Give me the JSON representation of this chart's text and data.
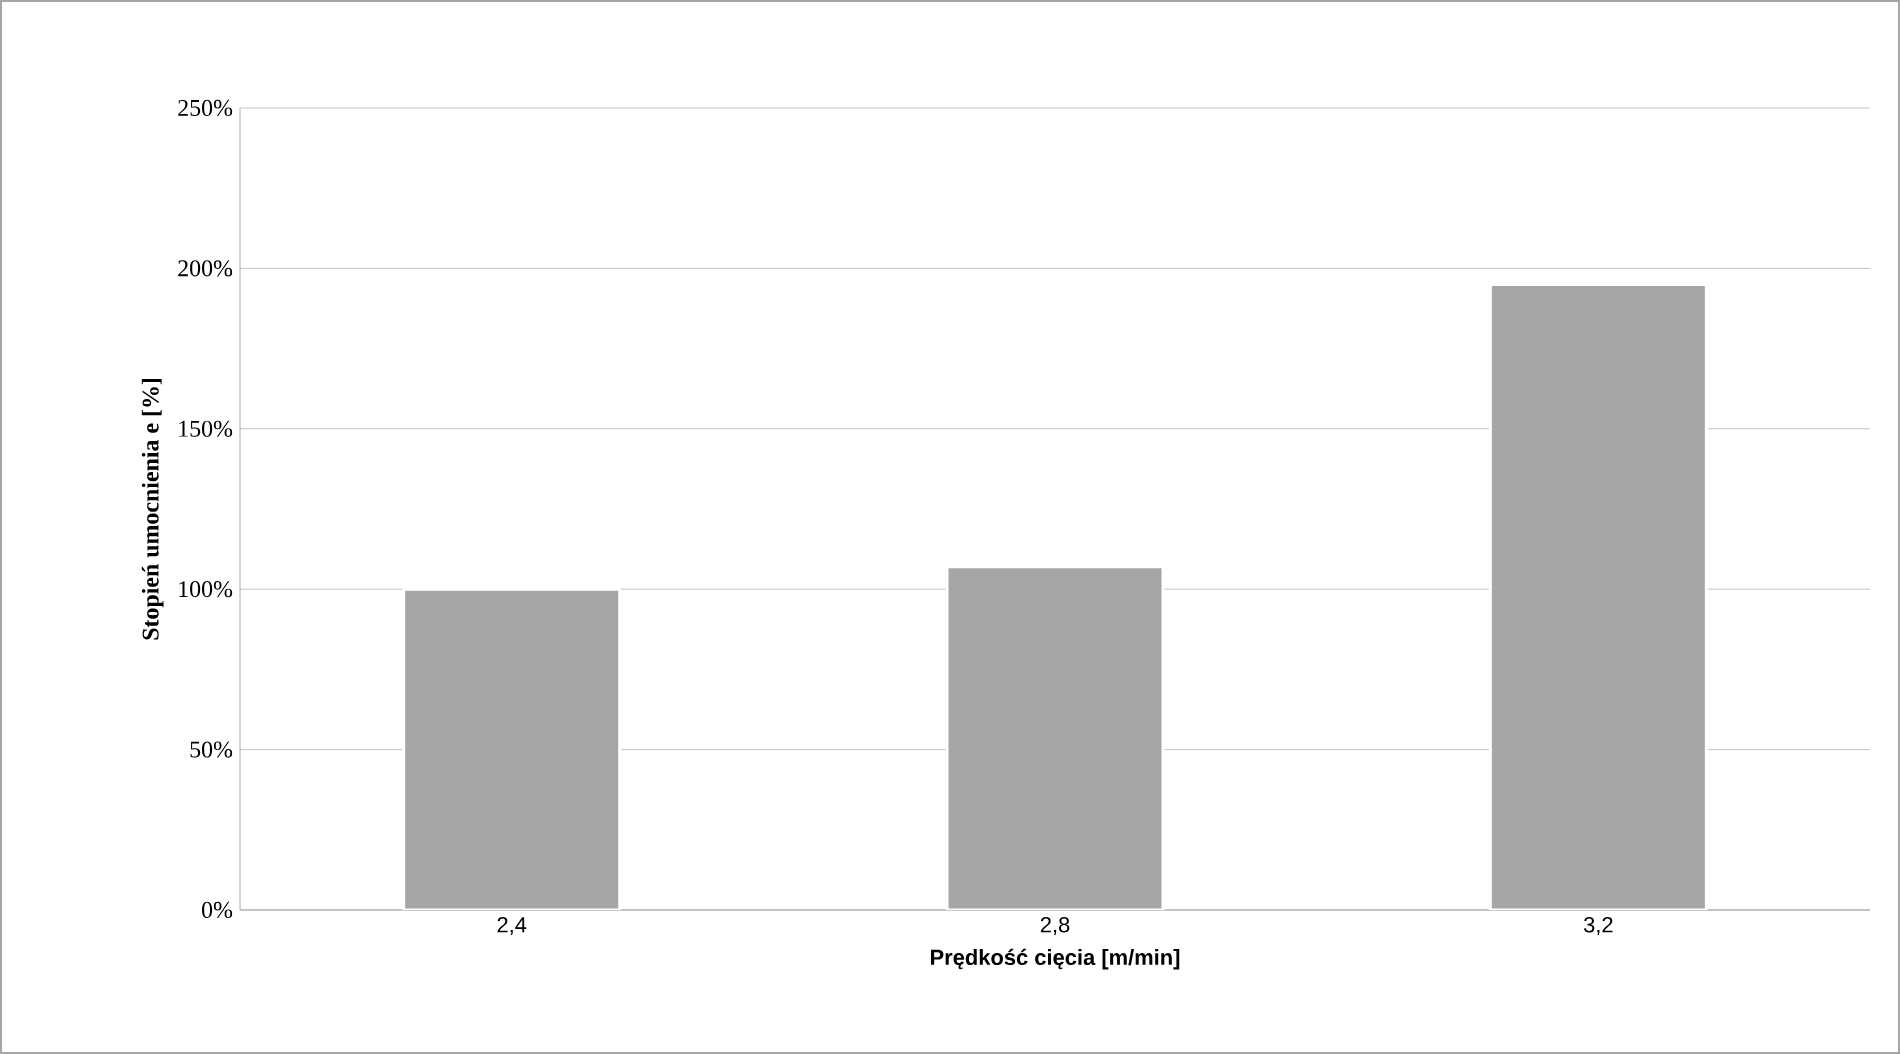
{
  "chart_data": {
    "type": "bar",
    "xlabel": "Prędkość cięcia [m/min]",
    "ylabel": "Stopień umocnienia e [%]",
    "categories": [
      "2,4",
      "2,8",
      "3,2"
    ],
    "values": [
      100,
      107,
      195
    ],
    "color": "#a6a6a6",
    "ylim": [
      0,
      250
    ],
    "yticks": [
      {
        "value": 0,
        "label": "0%"
      },
      {
        "value": 50,
        "label": "50%"
      },
      {
        "value": 100,
        "label": "100%"
      },
      {
        "value": 150,
        "label": "150%"
      },
      {
        "value": 200,
        "label": "200%"
      },
      {
        "value": 250,
        "label": "250%"
      }
    ],
    "grid": "y"
  }
}
